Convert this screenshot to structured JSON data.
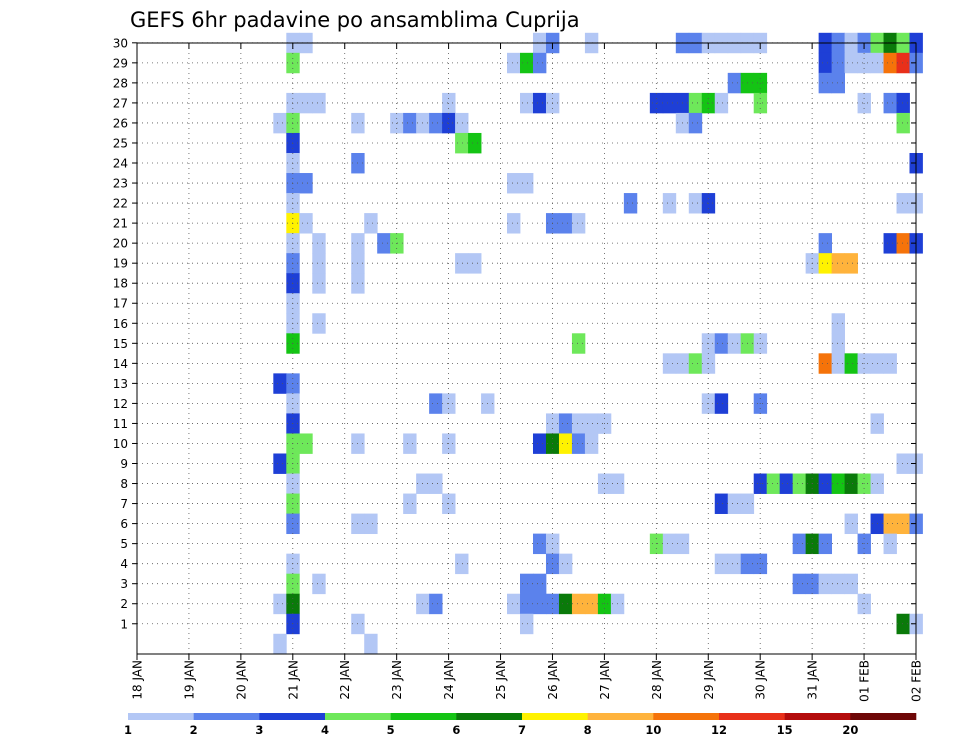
{
  "chart_data": {
    "type": "heatmap",
    "title": "GEFS 6hr padavine po ansamblima Cuprija",
    "xlabel": "",
    "ylabel": "",
    "x_ticks": [
      "18 JAN",
      "19 JAN",
      "20 JAN",
      "21 JAN",
      "22 JAN",
      "23 JAN",
      "24 JAN",
      "25 JAN",
      "26 JAN",
      "27 JAN",
      "28 JAN",
      "29 JAN",
      "30 JAN",
      "31 JAN",
      "01 FEB",
      "02 FEB"
    ],
    "x_range_days": [
      0,
      15
    ],
    "y_ticks": [
      "1",
      "2",
      "3",
      "4",
      "5",
      "6",
      "7",
      "8",
      "9",
      "10",
      "11",
      "12",
      "13",
      "14",
      "15",
      "16",
      "17",
      "18",
      "19",
      "20",
      "21",
      "22",
      "23",
      "24",
      "25",
      "26",
      "27",
      "28",
      "29",
      "30"
    ],
    "time_step_hours": 6,
    "grid": "dotted",
    "colorbar": {
      "labels": [
        "1",
        "2",
        "3",
        "4",
        "5",
        "6",
        "7",
        "8",
        "10",
        "12",
        "15",
        "20"
      ],
      "colors": [
        "#b3c7f5",
        "#5b82ec",
        "#1e3fd6",
        "#6ee85a",
        "#14c414",
        "#0a7a0a",
        "#fff200",
        "#ffb33c",
        "#f5730a",
        "#e8301a",
        "#b40c0c",
        "#6e0707"
      ]
    },
    "cells": [
      {
        "m": 30,
        "c": [
          [
            12,
            1
          ],
          [
            13,
            1
          ],
          [
            31,
            1
          ],
          [
            32,
            2
          ],
          [
            35,
            1
          ],
          [
            42,
            2
          ],
          [
            43,
            2
          ],
          [
            44,
            1
          ],
          [
            45,
            1
          ],
          [
            46,
            1
          ],
          [
            47,
            1
          ],
          [
            48,
            1
          ],
          [
            53,
            3
          ],
          [
            54,
            2
          ],
          [
            55,
            1
          ],
          [
            56,
            2
          ],
          [
            57,
            4
          ],
          [
            58,
            6
          ],
          [
            59,
            4
          ],
          [
            60,
            3
          ]
        ]
      },
      {
        "m": 29,
        "c": [
          [
            12,
            4
          ],
          [
            29,
            1
          ],
          [
            30,
            5
          ],
          [
            31,
            2
          ],
          [
            53,
            3
          ],
          [
            54,
            2
          ],
          [
            55,
            1
          ],
          [
            56,
            1
          ],
          [
            57,
            1
          ],
          [
            58,
            9
          ],
          [
            59,
            10
          ],
          [
            60,
            2
          ]
        ]
      },
      {
        "m": 28,
        "c": [
          [
            46,
            2
          ],
          [
            47,
            5
          ],
          [
            48,
            5
          ],
          [
            53,
            2
          ],
          [
            54,
            2
          ]
        ]
      },
      {
        "m": 27,
        "c": [
          [
            12,
            1
          ],
          [
            13,
            1
          ],
          [
            14,
            1
          ],
          [
            24,
            1
          ],
          [
            30,
            1
          ],
          [
            31,
            3
          ],
          [
            32,
            1
          ],
          [
            40,
            3
          ],
          [
            41,
            3
          ],
          [
            42,
            3
          ],
          [
            43,
            4
          ],
          [
            44,
            5
          ],
          [
            45,
            1
          ],
          [
            48,
            4
          ],
          [
            56,
            1
          ],
          [
            58,
            2
          ],
          [
            59,
            3
          ]
        ]
      },
      {
        "m": 26,
        "c": [
          [
            11,
            1
          ],
          [
            12,
            4
          ],
          [
            17,
            1
          ],
          [
            20,
            1
          ],
          [
            21,
            2
          ],
          [
            22,
            1
          ],
          [
            23,
            2
          ],
          [
            24,
            3
          ],
          [
            25,
            1
          ],
          [
            42,
            1
          ],
          [
            43,
            2
          ],
          [
            59,
            4
          ]
        ]
      },
      {
        "m": 25,
        "c": [
          [
            12,
            3
          ],
          [
            25,
            4
          ],
          [
            26,
            5
          ]
        ]
      },
      {
        "m": 24,
        "c": [
          [
            12,
            1
          ],
          [
            17,
            2
          ],
          [
            60,
            3
          ]
        ]
      },
      {
        "m": 23,
        "c": [
          [
            12,
            2
          ],
          [
            13,
            2
          ],
          [
            29,
            1
          ],
          [
            30,
            1
          ]
        ]
      },
      {
        "m": 22,
        "c": [
          [
            12,
            1
          ],
          [
            38,
            2
          ],
          [
            41,
            1
          ],
          [
            43,
            1
          ],
          [
            44,
            3
          ],
          [
            59,
            1
          ],
          [
            60,
            1
          ]
        ]
      },
      {
        "m": 21,
        "c": [
          [
            12,
            7
          ],
          [
            13,
            1
          ],
          [
            18,
            1
          ],
          [
            29,
            1
          ],
          [
            32,
            2
          ],
          [
            33,
            2
          ],
          [
            34,
            1
          ]
        ]
      },
      {
        "m": 20,
        "c": [
          [
            12,
            1
          ],
          [
            14,
            1
          ],
          [
            17,
            1
          ],
          [
            19,
            2
          ],
          [
            20,
            4
          ],
          [
            53,
            2
          ],
          [
            58,
            3
          ],
          [
            59,
            9
          ],
          [
            60,
            3
          ]
        ]
      },
      {
        "m": 19,
        "c": [
          [
            12,
            2
          ],
          [
            14,
            1
          ],
          [
            17,
            1
          ],
          [
            25,
            1
          ],
          [
            26,
            1
          ],
          [
            52,
            1
          ],
          [
            53,
            7
          ],
          [
            54,
            8
          ],
          [
            55,
            8
          ]
        ]
      },
      {
        "m": 18,
        "c": [
          [
            12,
            3
          ],
          [
            14,
            1
          ],
          [
            17,
            1
          ]
        ]
      },
      {
        "m": 17,
        "c": [
          [
            12,
            1
          ]
        ]
      },
      {
        "m": 16,
        "c": [
          [
            12,
            1
          ],
          [
            14,
            1
          ],
          [
            54,
            1
          ]
        ]
      },
      {
        "m": 15,
        "c": [
          [
            12,
            5
          ],
          [
            34,
            4
          ],
          [
            44,
            1
          ],
          [
            45,
            2
          ],
          [
            46,
            1
          ],
          [
            47,
            4
          ],
          [
            48,
            1
          ],
          [
            54,
            1
          ]
        ]
      },
      {
        "m": 14,
        "c": [
          [
            41,
            1
          ],
          [
            42,
            1
          ],
          [
            43,
            4
          ],
          [
            44,
            1
          ],
          [
            53,
            9
          ],
          [
            54,
            1
          ],
          [
            55,
            5
          ],
          [
            56,
            1
          ],
          [
            57,
            1
          ],
          [
            58,
            1
          ]
        ]
      },
      {
        "m": 13,
        "c": [
          [
            11,
            3
          ],
          [
            12,
            2
          ]
        ]
      },
      {
        "m": 12,
        "c": [
          [
            12,
            1
          ],
          [
            23,
            2
          ],
          [
            24,
            1
          ],
          [
            27,
            1
          ],
          [
            44,
            1
          ],
          [
            45,
            3
          ],
          [
            48,
            2
          ]
        ]
      },
      {
        "m": 11,
        "c": [
          [
            12,
            3
          ],
          [
            32,
            1
          ],
          [
            33,
            2
          ],
          [
            34,
            1
          ],
          [
            35,
            1
          ],
          [
            36,
            1
          ],
          [
            57,
            1
          ]
        ]
      },
      {
        "m": 10,
        "c": [
          [
            12,
            4
          ],
          [
            13,
            4
          ],
          [
            17,
            1
          ],
          [
            21,
            1
          ],
          [
            24,
            1
          ],
          [
            31,
            3
          ],
          [
            32,
            6
          ],
          [
            33,
            7
          ],
          [
            34,
            2
          ],
          [
            35,
            1
          ]
        ]
      },
      {
        "m": 9,
        "c": [
          [
            11,
            3
          ],
          [
            12,
            4
          ],
          [
            59,
            1
          ],
          [
            60,
            1
          ]
        ]
      },
      {
        "m": 8,
        "c": [
          [
            12,
            1
          ],
          [
            22,
            1
          ],
          [
            23,
            1
          ],
          [
            36,
            1
          ],
          [
            37,
            1
          ],
          [
            48,
            3
          ],
          [
            49,
            4
          ],
          [
            50,
            3
          ],
          [
            51,
            4
          ],
          [
            52,
            6
          ],
          [
            53,
            3
          ],
          [
            54,
            5
          ],
          [
            55,
            6
          ],
          [
            56,
            4
          ],
          [
            57,
            1
          ]
        ]
      },
      {
        "m": 7,
        "c": [
          [
            12,
            4
          ],
          [
            21,
            1
          ],
          [
            24,
            1
          ],
          [
            45,
            3
          ],
          [
            46,
            1
          ],
          [
            47,
            1
          ]
        ]
      },
      {
        "m": 6,
        "c": [
          [
            12,
            2
          ],
          [
            17,
            1
          ],
          [
            18,
            1
          ],
          [
            55,
            1
          ],
          [
            57,
            3
          ],
          [
            58,
            8
          ],
          [
            59,
            8
          ],
          [
            60,
            2
          ]
        ]
      },
      {
        "m": 5,
        "c": [
          [
            31,
            2
          ],
          [
            32,
            1
          ],
          [
            40,
            4
          ],
          [
            41,
            1
          ],
          [
            42,
            1
          ],
          [
            51,
            2
          ],
          [
            52,
            6
          ],
          [
            53,
            2
          ],
          [
            56,
            2
          ],
          [
            58,
            1
          ]
        ]
      },
      {
        "m": 4,
        "c": [
          [
            12,
            1
          ],
          [
            25,
            1
          ],
          [
            32,
            2
          ],
          [
            33,
            1
          ],
          [
            45,
            1
          ],
          [
            46,
            1
          ],
          [
            47,
            2
          ],
          [
            48,
            2
          ]
        ]
      },
      {
        "m": 3,
        "c": [
          [
            12,
            4
          ],
          [
            14,
            1
          ],
          [
            30,
            2
          ],
          [
            31,
            2
          ],
          [
            51,
            2
          ],
          [
            52,
            2
          ],
          [
            53,
            1
          ],
          [
            54,
            1
          ],
          [
            55,
            1
          ]
        ]
      },
      {
        "m": 2,
        "c": [
          [
            11,
            1
          ],
          [
            12,
            6
          ],
          [
            22,
            1
          ],
          [
            23,
            2
          ],
          [
            29,
            1
          ],
          [
            30,
            2
          ],
          [
            31,
            2
          ],
          [
            32,
            2
          ],
          [
            33,
            6
          ],
          [
            34,
            8
          ],
          [
            35,
            8
          ],
          [
            36,
            5
          ],
          [
            37,
            1
          ],
          [
            56,
            1
          ]
        ]
      },
      {
        "m": 1,
        "c": [
          [
            12,
            3
          ],
          [
            17,
            1
          ],
          [
            30,
            1
          ],
          [
            59,
            6
          ],
          [
            60,
            1
          ]
        ]
      },
      {
        "m": 0,
        "c": [
          [
            11,
            1
          ],
          [
            18,
            1
          ]
        ]
      }
    ]
  }
}
